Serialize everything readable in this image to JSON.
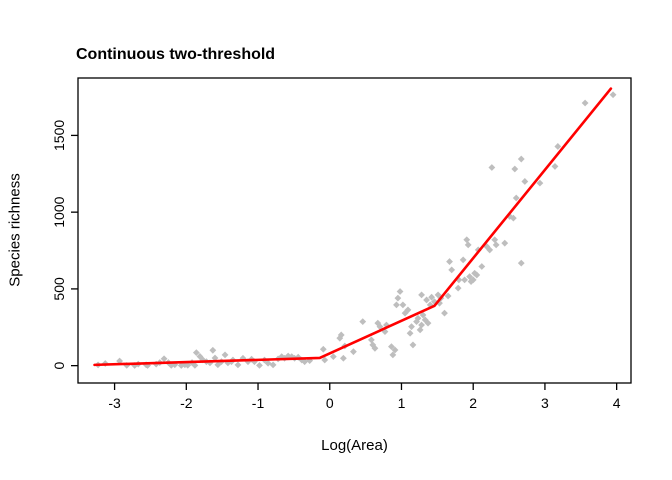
{
  "page": {
    "background": "#ffffff"
  },
  "chart_data": {
    "type": "scatter",
    "title": "Continuous two-threshold",
    "xlabel": "Log(Area)",
    "ylabel": "Species richness",
    "x_ticks": [
      -3,
      -2,
      -1,
      0,
      1,
      2,
      3,
      4
    ],
    "y_ticks": [
      0,
      500,
      1000,
      1500
    ],
    "xlim": [
      -3.51,
      4.2
    ],
    "ylim": [
      -113,
      1874
    ],
    "grid": false,
    "legend": "none",
    "colors": {
      "points": "#bebebe",
      "fit_line": "#ff0000",
      "axis": "#000000",
      "text": "#000000"
    },
    "marker": "diamond",
    "series": [
      {
        "name": "observations",
        "type": "scatter",
        "points": [
          [
            -3.23,
            5
          ],
          [
            -3.13,
            14
          ],
          [
            -2.93,
            30
          ],
          [
            -2.83,
            2
          ],
          [
            -2.72,
            1
          ],
          [
            -2.67,
            10
          ],
          [
            -2.56,
            6
          ],
          [
            -2.54,
            1
          ],
          [
            -2.42,
            10
          ],
          [
            -2.37,
            20
          ],
          [
            -2.31,
            45
          ],
          [
            -2.25,
            20
          ],
          [
            -2.21,
            2
          ],
          [
            -2.16,
            6
          ],
          [
            -2.07,
            1
          ],
          [
            -2.02,
            6
          ],
          [
            -1.98,
            3
          ],
          [
            -1.92,
            20
          ],
          [
            -1.88,
            2
          ],
          [
            -1.86,
            85
          ],
          [
            -1.81,
            60
          ],
          [
            -1.77,
            38
          ],
          [
            -1.72,
            26
          ],
          [
            -1.67,
            18
          ],
          [
            -1.63,
            100
          ],
          [
            -1.6,
            50
          ],
          [
            -1.56,
            6
          ],
          [
            -1.51,
            26
          ],
          [
            -1.46,
            70
          ],
          [
            -1.42,
            18
          ],
          [
            -1.37,
            26
          ],
          [
            -1.35,
            37
          ],
          [
            -1.28,
            5
          ],
          [
            -1.21,
            48
          ],
          [
            -1.14,
            26
          ],
          [
            -1.09,
            42
          ],
          [
            -1.05,
            26
          ],
          [
            -0.98,
            2
          ],
          [
            -0.91,
            37
          ],
          [
            -0.86,
            16
          ],
          [
            -0.79,
            5
          ],
          [
            -0.72,
            44
          ],
          [
            -0.67,
            59
          ],
          [
            -0.63,
            48
          ],
          [
            -0.58,
            63
          ],
          [
            -0.53,
            59
          ],
          [
            -0.49,
            48
          ],
          [
            -0.44,
            55
          ],
          [
            -0.39,
            37
          ],
          [
            -0.35,
            26
          ],
          [
            -0.28,
            33
          ],
          [
            -0.09,
            107
          ],
          [
            -0.07,
            37
          ],
          [
            0.05,
            59
          ],
          [
            0.14,
            179
          ],
          [
            0.16,
            200
          ],
          [
            0.19,
            48
          ],
          [
            0.21,
            128
          ],
          [
            0.33,
            91
          ],
          [
            0.46,
            287
          ],
          [
            0.58,
            168
          ],
          [
            0.6,
            135
          ],
          [
            0.63,
            113
          ],
          [
            0.67,
            277
          ],
          [
            0.7,
            254
          ],
          [
            0.77,
            222
          ],
          [
            0.79,
            265
          ],
          [
            0.86,
            124
          ],
          [
            0.88,
            70
          ],
          [
            0.91,
            102
          ],
          [
            0.93,
            396
          ],
          [
            0.95,
            440
          ],
          [
            0.98,
            483
          ],
          [
            1.02,
            396
          ],
          [
            1.05,
            342
          ],
          [
            1.09,
            363
          ],
          [
            1.12,
            211
          ],
          [
            1.14,
            254
          ],
          [
            1.16,
            135
          ],
          [
            1.21,
            287
          ],
          [
            1.23,
            309
          ],
          [
            1.26,
            233
          ],
          [
            1.28,
            265
          ],
          [
            1.28,
            461
          ],
          [
            1.3,
            330
          ],
          [
            1.33,
            298
          ],
          [
            1.35,
            428
          ],
          [
            1.37,
            277
          ],
          [
            1.4,
            396
          ],
          [
            1.42,
            446
          ],
          [
            1.46,
            417
          ],
          [
            1.51,
            461
          ],
          [
            1.53,
            407
          ],
          [
            1.55,
            440
          ],
          [
            1.6,
            342
          ],
          [
            1.65,
            454
          ],
          [
            1.67,
            678
          ],
          [
            1.7,
            624
          ],
          [
            1.79,
            505
          ],
          [
            1.8,
            559
          ],
          [
            1.86,
            689
          ],
          [
            1.88,
            559
          ],
          [
            1.91,
            820
          ],
          [
            1.93,
            787
          ],
          [
            1.95,
            580
          ],
          [
            1.97,
            548
          ],
          [
            2.0,
            559
          ],
          [
            2.02,
            602
          ],
          [
            2.05,
            591
          ],
          [
            2.07,
            754
          ],
          [
            2.12,
            646
          ],
          [
            2.19,
            776
          ],
          [
            2.23,
            754
          ],
          [
            2.26,
            1291
          ],
          [
            2.3,
            820
          ],
          [
            2.32,
            787
          ],
          [
            2.44,
            798
          ],
          [
            2.51,
            972
          ],
          [
            2.56,
            961
          ],
          [
            2.58,
            1281
          ],
          [
            2.6,
            1092
          ],
          [
            2.67,
            668
          ],
          [
            2.67,
            1346
          ],
          [
            2.72,
            1200
          ],
          [
            2.93,
            1189
          ],
          [
            3.14,
            1298
          ],
          [
            3.18,
            1428
          ],
          [
            3.56,
            1711
          ],
          [
            3.95,
            1765
          ]
        ]
      },
      {
        "name": "two-threshold-fit",
        "type": "line",
        "vertices": [
          [
            -3.28,
            5
          ],
          [
            -0.14,
            50
          ],
          [
            1.46,
            390
          ],
          [
            3.92,
            1805
          ]
        ]
      }
    ]
  }
}
